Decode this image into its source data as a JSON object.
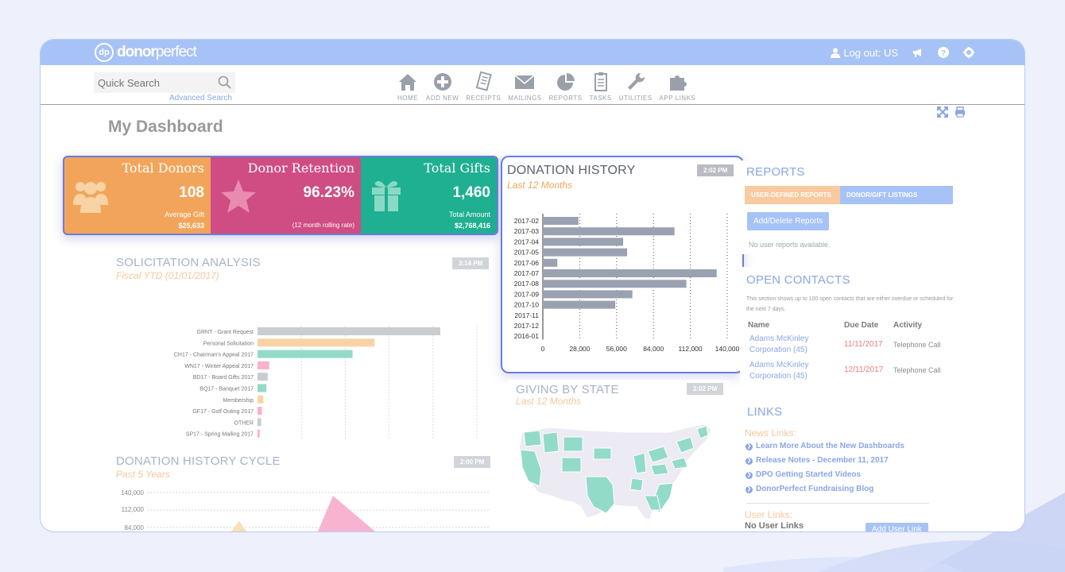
{
  "header": {
    "logo_mark": "dp",
    "logo_text_bold": "donor",
    "logo_text_light": "perfect",
    "logout_label": "Log out: US"
  },
  "search": {
    "placeholder": "Quick Search",
    "advanced_label": "Advanced Search"
  },
  "nav": {
    "items": [
      {
        "label": "HOME",
        "icon": "home-icon"
      },
      {
        "label": "ADD NEW",
        "icon": "add-icon"
      },
      {
        "label": "RECEIPTS",
        "icon": "receipt-icon"
      },
      {
        "label": "MAILINGS",
        "icon": "mail-icon"
      },
      {
        "label": "REPORTS",
        "icon": "pie-chart-icon"
      },
      {
        "label": "TASKS",
        "icon": "clipboard-icon"
      },
      {
        "label": "UTILITIES",
        "icon": "wrench-icon"
      },
      {
        "label": "APP LINKS",
        "icon": "puzzle-icon"
      }
    ]
  },
  "page": {
    "title": "My Dashboard"
  },
  "kpis": {
    "donors": {
      "title": "Total Donors",
      "value": "108",
      "label": "Average Gift",
      "sub": "$25,633",
      "color": "#f2a55a"
    },
    "retention": {
      "title": "Donor Retention",
      "value": "96.23%",
      "label": "(12 month rolling rate)",
      "color": "#cf4d82"
    },
    "gifts": {
      "title": "Total Gifts",
      "value": "1,460",
      "label": "Total Amount",
      "sub": "$2,768,416",
      "color": "#1faf91"
    }
  },
  "solicitation": {
    "title": "SOLICITATION ANALYSIS",
    "subtitle": "Fiscal YTD (01/01/2017)",
    "time": "3:14 PM"
  },
  "history_cycle": {
    "title": "DONATION HISTORY CYCLE",
    "subtitle": "Past 5 Years",
    "time": "2:00 PM",
    "ticks": [
      "140,000",
      "112,000",
      "84,000"
    ]
  },
  "donation_history": {
    "title": "DONATION HISTORY",
    "subtitle": "Last 12 Months",
    "time": "2:02 PM"
  },
  "giving_state": {
    "title": "GIVING BY STATE",
    "subtitle": "Last 12 Months",
    "time": "2:02 PM"
  },
  "reports": {
    "title": "REPORTS",
    "tab1": "USER-DEFINED REPORTS",
    "tab2": "DONOR/GIFT LISTINGS",
    "button": "Add/Delete Reports",
    "empty": "No user reports available."
  },
  "contacts": {
    "title": "OPEN CONTACTS",
    "note": "This section shows up to 100 open contacts that are either overdue or scheduled for the next 7 days.",
    "headers": {
      "name": "Name",
      "due": "Due Date",
      "activity": "Activity"
    },
    "rows": [
      {
        "name": "Adams McKinley Corporation (45)",
        "due": "11/11/2017",
        "activity": "Telephone Call"
      },
      {
        "name": "Adams McKinley Corporation (45)",
        "due": "12/11/2017",
        "activity": "Telephone Call"
      }
    ]
  },
  "links": {
    "title": "LINKS",
    "news_label": "News Links:",
    "news": [
      "Learn More About the New Dashboards",
      "Release Notes - December 11, 2017",
      "DPO Getting Started Videos",
      "DonorPerfect Fundraising Blog"
    ],
    "user_label": "User Links:",
    "no_user": "No User Links",
    "add_button": "Add User Link"
  },
  "chart_data": [
    {
      "type": "bar",
      "orientation": "horizontal",
      "title": "SOLICITATION ANALYSIS",
      "categories": [
        "GRNT - Grant Request",
        "Personal Solicitation",
        "CH17 - Chairman's Appeal 2017",
        "WN17 - Winter Appeal 2017",
        "BD17 - Board Gifts 2017",
        "BQ17 - Banquet 2017",
        "Membership",
        "GF17 - Golf Outing 2017",
        "OTHER",
        "SP17 - Spring Mailing 2017"
      ],
      "values": [
        250000,
        160000,
        130000,
        16000,
        14000,
        12000,
        8000,
        6000,
        5000,
        3000
      ],
      "colors": [
        "#c9ccd1",
        "#f9d3a6",
        "#93dbc9",
        "#f7b3c9",
        "#c9ccd1",
        "#93dbc9",
        "#f9d3a6",
        "#f7b3c9",
        "#c9ccd1",
        "#f7b3c9"
      ],
      "xticks": [
        "0",
        "60,000",
        "120,000",
        "180,000",
        "240,000",
        "300,000"
      ],
      "xlim": [
        0,
        300000
      ],
      "grid": true
    },
    {
      "type": "bar",
      "orientation": "horizontal",
      "title": "DONATION HISTORY",
      "categories": [
        "2017-02",
        "2017-03",
        "2017-04",
        "2017-05",
        "2017-06",
        "2017-07",
        "2017-08",
        "2017-09",
        "2017-10",
        "2017-11",
        "2017-12",
        "2016-01"
      ],
      "values": [
        27000,
        100000,
        61000,
        64000,
        11000,
        132000,
        109000,
        68000,
        55000,
        0,
        0,
        0
      ],
      "xticks": [
        "0",
        "28,000",
        "56,000",
        "84,000",
        "112,000",
        "140,000"
      ],
      "xlim": [
        0,
        140000
      ],
      "grid": true,
      "color": "#9aa1b1"
    }
  ]
}
